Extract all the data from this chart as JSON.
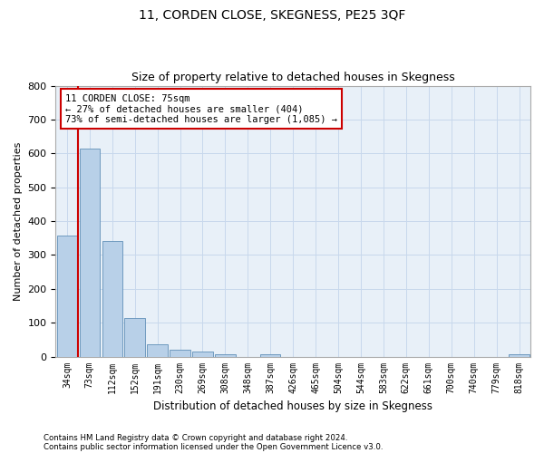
{
  "title": "11, CORDEN CLOSE, SKEGNESS, PE25 3QF",
  "subtitle": "Size of property relative to detached houses in Skegness",
  "xlabel": "Distribution of detached houses by size in Skegness",
  "ylabel": "Number of detached properties",
  "footnote1": "Contains HM Land Registry data © Crown copyright and database right 2024.",
  "footnote2": "Contains public sector information licensed under the Open Government Licence v3.0.",
  "categories": [
    "34sqm",
    "73sqm",
    "112sqm",
    "152sqm",
    "191sqm",
    "230sqm",
    "269sqm",
    "308sqm",
    "348sqm",
    "387sqm",
    "426sqm",
    "465sqm",
    "504sqm",
    "544sqm",
    "583sqm",
    "622sqm",
    "661sqm",
    "700sqm",
    "740sqm",
    "779sqm",
    "818sqm"
  ],
  "values": [
    357,
    614,
    340,
    113,
    37,
    20,
    15,
    8,
    0,
    8,
    0,
    0,
    0,
    0,
    0,
    0,
    0,
    0,
    0,
    0,
    8
  ],
  "bar_color": "#b8d0e8",
  "bar_edge_color": "#6090b8",
  "highlight_bar_index": 1,
  "annotation_text": "11 CORDEN CLOSE: 75sqm\n← 27% of detached houses are smaller (404)\n73% of semi-detached houses are larger (1,085) →",
  "annotation_box_color": "#ffffff",
  "annotation_box_edge": "#cc0000",
  "marker_line_color": "#cc0000",
  "ylim": [
    0,
    800
  ],
  "yticks": [
    0,
    100,
    200,
    300,
    400,
    500,
    600,
    700,
    800
  ],
  "grid_color": "#c8d8ec",
  "background_color": "#e8f0f8",
  "title_fontsize": 10,
  "subtitle_fontsize": 9
}
